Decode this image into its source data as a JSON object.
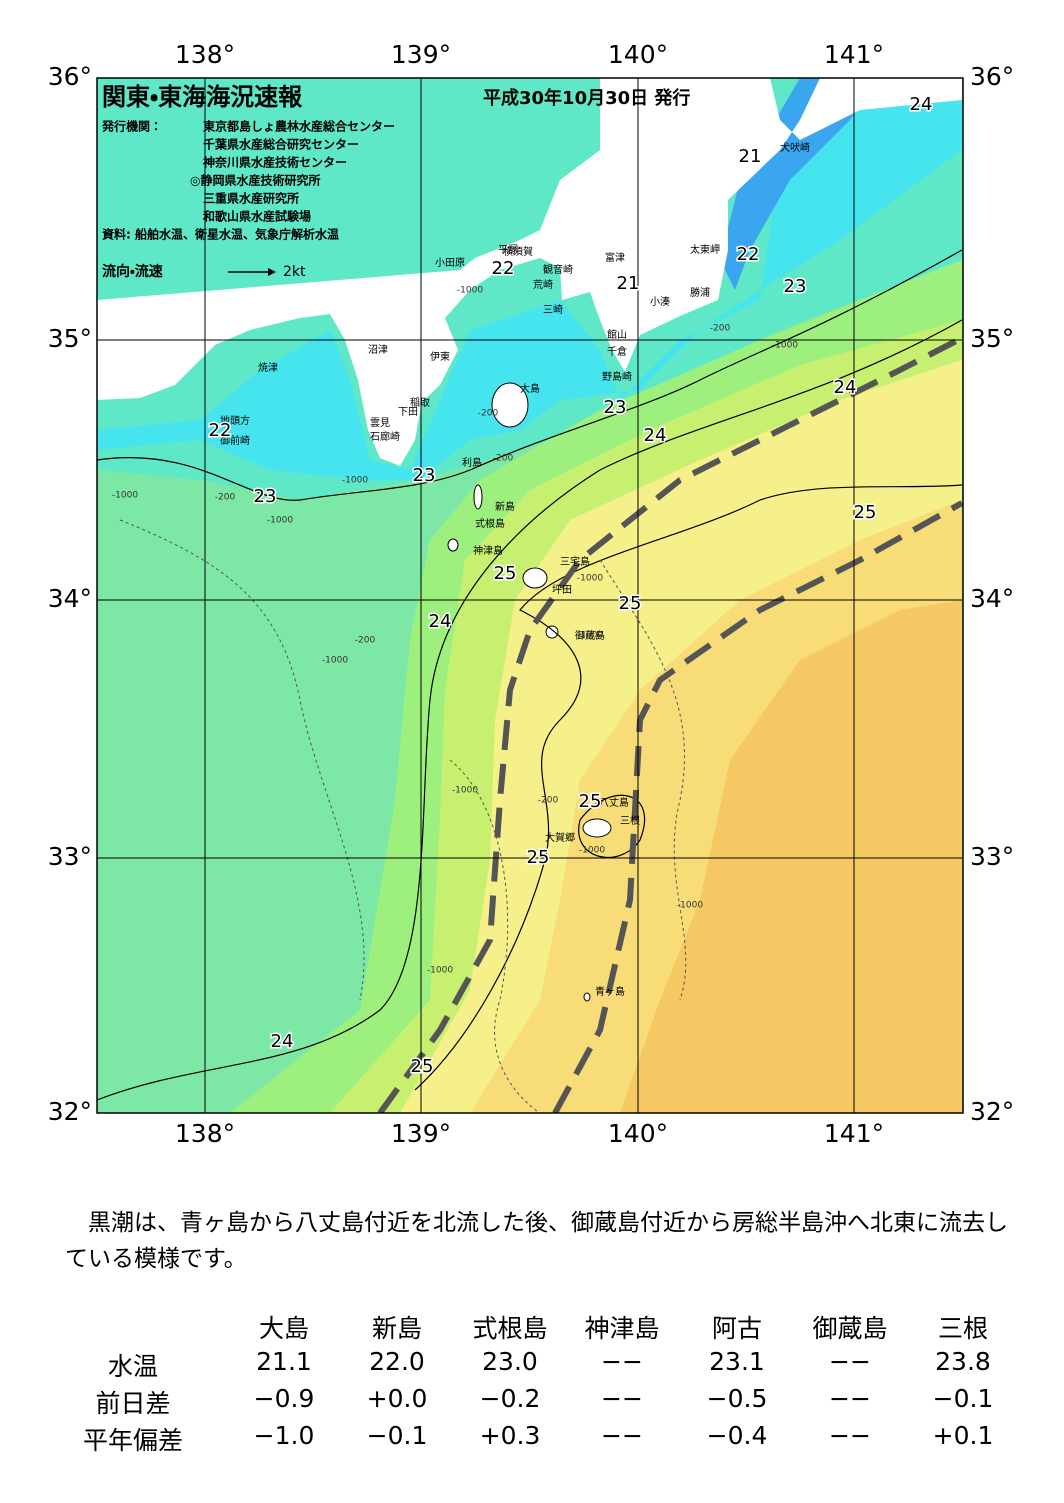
{
  "header": {
    "title": "関東・東海海況速報",
    "date": "平成30年10月30日 発行",
    "publisher_label": "発行機関：",
    "publishers": [
      "東京都島しょ農林水産総合センター",
      "千葉県水産総合研究センター",
      "神奈川県水産技術センター",
      "◎静岡県水産技術研究所",
      "三重県水産研究所",
      "和歌山県水産試験場"
    ],
    "source": "資料: 船舶水温、衛星水温、気象庁解析水温",
    "legend_label": "流向・流速",
    "legend_scale": "2kt"
  },
  "axes": {
    "lon_labels": [
      "138°",
      "139°",
      "140°",
      "141°"
    ],
    "lat_labels": [
      "36°",
      "35°",
      "34°",
      "33°",
      "32°"
    ]
  },
  "places": [
    "犬吠崎",
    "太東岬",
    "勝浦",
    "小湊",
    "富津",
    "館山",
    "千倉",
    "野島崎",
    "横須賀",
    "観音崎",
    "荒崎",
    "三崎",
    "平塚",
    "小田原",
    "沼津",
    "伊東",
    "稲取",
    "下田",
    "雲見",
    "石廊崎",
    "焼津",
    "地頭方",
    "御前崎",
    "大島",
    "利島",
    "新島",
    "式根島",
    "神津島",
    "三宅島",
    "坪田",
    "御蔵島",
    "八丈島",
    "三根",
    "大賀郷",
    "青ヶ島"
  ],
  "contour_labels": [
    "24",
    "21",
    "22",
    "23",
    "22",
    "21",
    "24",
    "23",
    "24",
    "22",
    "23",
    "23",
    "25",
    "25",
    "25",
    "24",
    "25",
    "25",
    "24",
    "25"
  ],
  "depth_labels": [
    "-1000",
    "-200",
    "-1000",
    "-200",
    "-1000",
    "-1000",
    "-1000",
    "-200",
    "-200",
    "-200",
    "-1000",
    "-1000",
    "-1000",
    "-1000",
    "-200",
    "-1000",
    "-1000",
    "-1000"
  ],
  "comment": "黒潮は、青ヶ島から八丈島付近を北流した後、御蔵島付近から房総半島沖へ北東に流去している模様です。",
  "table": {
    "columns": [
      "大島",
      "新島",
      "式根島",
      "神津島",
      "阿古",
      "御蔵島",
      "三根"
    ],
    "rows": [
      {
        "label": "水温",
        "values": [
          "21.1",
          "22.0",
          "23.0",
          "−−",
          "23.1",
          "−−",
          "23.8"
        ]
      },
      {
        "label": "前日差",
        "values": [
          "−0.9",
          "+0.0",
          "−0.2",
          "−−",
          "−0.5",
          "−−",
          "−0.1"
        ]
      },
      {
        "label": "平年偏差",
        "values": [
          "−1.0",
          "−0.1",
          "+0.3",
          "−−",
          "−0.4",
          "−−",
          "+0.1"
        ]
      }
    ]
  }
}
